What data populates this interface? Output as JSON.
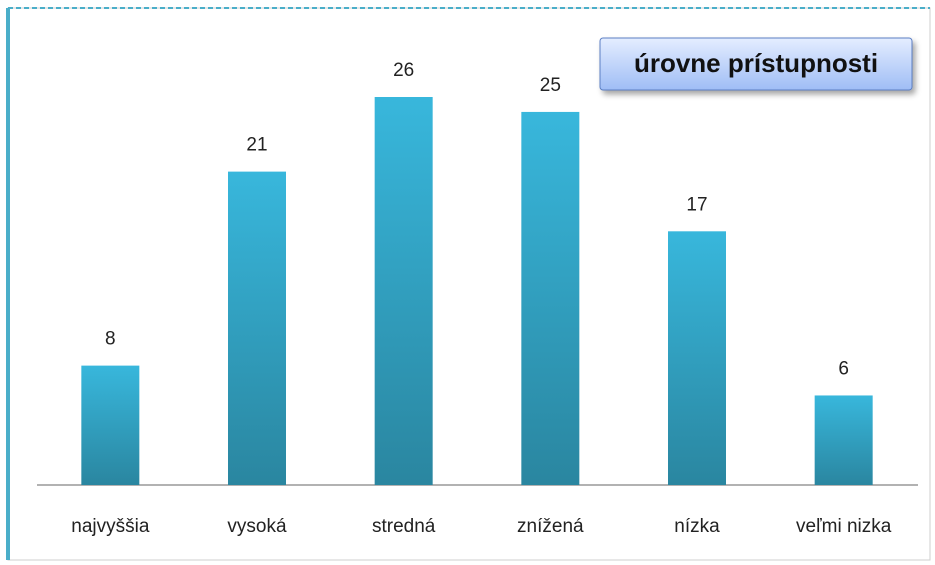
{
  "chart_data": {
    "type": "bar",
    "title": "úrovne prístupnosti",
    "categories": [
      "najvyššia",
      "vysoká",
      "stredná",
      "znížená",
      "nízka",
      "veľmi nizka"
    ],
    "values": [
      8,
      21,
      26,
      25,
      17,
      6
    ],
    "color": "#34aed1"
  }
}
